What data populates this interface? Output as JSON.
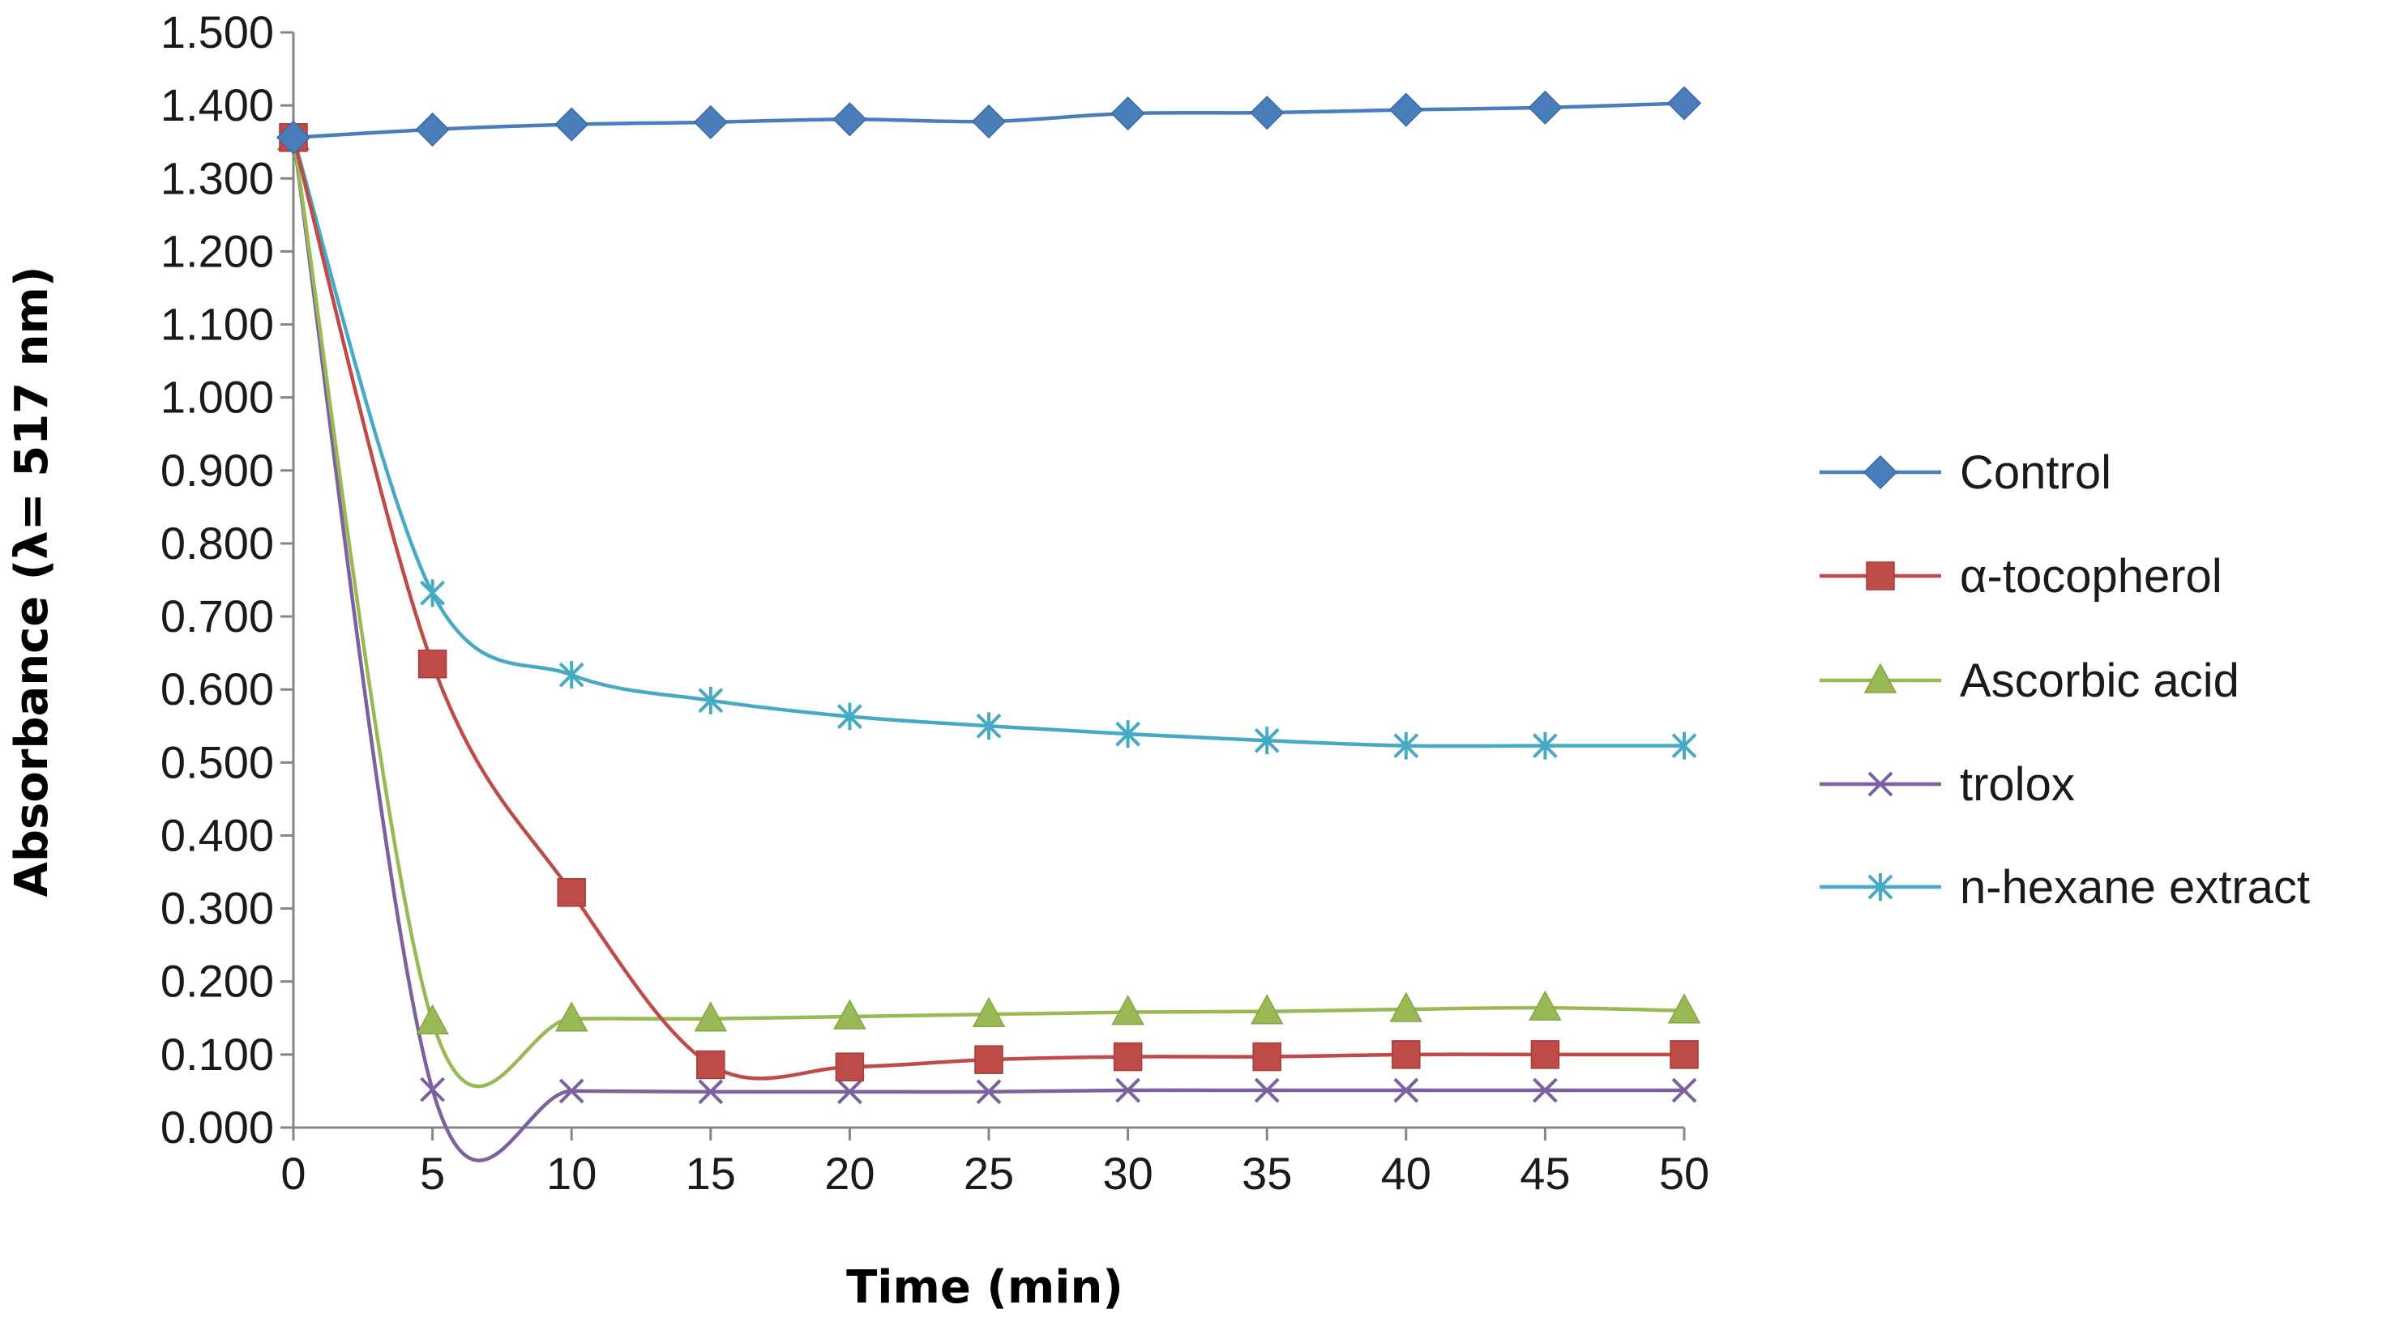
{
  "chart_data": {
    "type": "line",
    "xlabel": "Time (min)",
    "ylabel": "Absorbance (λ= 517 nm)",
    "xlim": [
      0,
      50
    ],
    "ylim": [
      0,
      1.5
    ],
    "x_ticks": [
      0,
      5,
      10,
      15,
      20,
      25,
      30,
      35,
      40,
      45,
      50
    ],
    "y_ticks": [
      "0.000",
      "0.100",
      "0.200",
      "0.300",
      "0.400",
      "0.500",
      "0.600",
      "0.700",
      "0.800",
      "0.900",
      "1.000",
      "1.100",
      "1.200",
      "1.300",
      "1.400",
      "1.500"
    ],
    "grid": false,
    "legend_position": "right",
    "series": [
      {
        "name": "Control",
        "color": "#4a7ebb",
        "marker": "diamond",
        "x": [
          0,
          5,
          10,
          15,
          20,
          25,
          30,
          35,
          40,
          45,
          50
        ],
        "values": [
          1.356,
          1.367,
          1.374,
          1.377,
          1.381,
          1.378,
          1.389,
          1.39,
          1.394,
          1.397,
          1.403
        ]
      },
      {
        "name": "α-tocopherol",
        "color": "#be4b48",
        "marker": "square",
        "x": [
          0,
          5,
          10,
          15,
          20,
          25,
          30,
          35,
          40,
          45,
          50
        ],
        "values": [
          1.356,
          0.635,
          0.322,
          0.086,
          0.083,
          0.093,
          0.097,
          0.097,
          0.1,
          0.1,
          0.1
        ]
      },
      {
        "name": "Ascorbic acid",
        "color": "#98b954",
        "marker": "triangle",
        "x": [
          0,
          5,
          10,
          15,
          20,
          25,
          30,
          35,
          40,
          45,
          50
        ],
        "values": [
          1.356,
          0.145,
          0.149,
          0.149,
          0.152,
          0.155,
          0.158,
          0.159,
          0.162,
          0.164,
          0.16
        ]
      },
      {
        "name": "trolox",
        "color": "#7d60a0",
        "marker": "x",
        "x": [
          0,
          5,
          10,
          15,
          20,
          25,
          30,
          35,
          40,
          45,
          50
        ],
        "values": [
          1.356,
          0.052,
          0.05,
          0.049,
          0.049,
          0.049,
          0.051,
          0.051,
          0.051,
          0.051,
          0.051
        ]
      },
      {
        "name": "n-hexane extract",
        "color": "#46aac5",
        "marker": "star",
        "x": [
          0,
          5,
          10,
          15,
          20,
          25,
          30,
          35,
          40,
          45,
          50
        ],
        "values": [
          1.356,
          0.732,
          0.62,
          0.585,
          0.563,
          0.55,
          0.539,
          0.53,
          0.523,
          0.523,
          0.523
        ]
      }
    ]
  }
}
